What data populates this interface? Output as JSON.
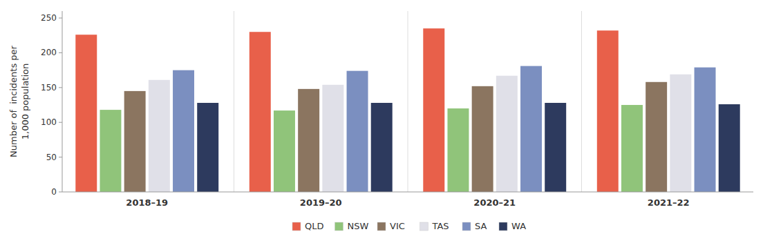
{
  "chart_data": {
    "type": "bar",
    "categories": [
      "2018–19",
      "2019–20",
      "2020–21",
      "2021–22"
    ],
    "series": [
      {
        "name": "QLD",
        "color": "#E8604A",
        "values": [
          226,
          230,
          235,
          232
        ]
      },
      {
        "name": "NSW",
        "color": "#90C47A",
        "values": [
          118,
          117,
          120,
          125
        ]
      },
      {
        "name": "VIC",
        "color": "#8B7560",
        "values": [
          145,
          148,
          152,
          158
        ]
      },
      {
        "name": "TAS",
        "color": "#E0E0E8",
        "values": [
          161,
          154,
          167,
          169
        ]
      },
      {
        "name": "SA",
        "color": "#7B8FC0",
        "values": [
          175,
          174,
          181,
          179
        ]
      },
      {
        "name": "WA",
        "color": "#2D3A5E",
        "values": [
          128,
          128,
          128,
          126
        ]
      }
    ],
    "ylabel": "Number of  incidents per\n1,000 population",
    "ylim": [
      0,
      260
    ],
    "yticks": [
      0,
      50,
      100,
      150,
      200,
      250
    ],
    "grid": false,
    "legend": "bottom"
  }
}
